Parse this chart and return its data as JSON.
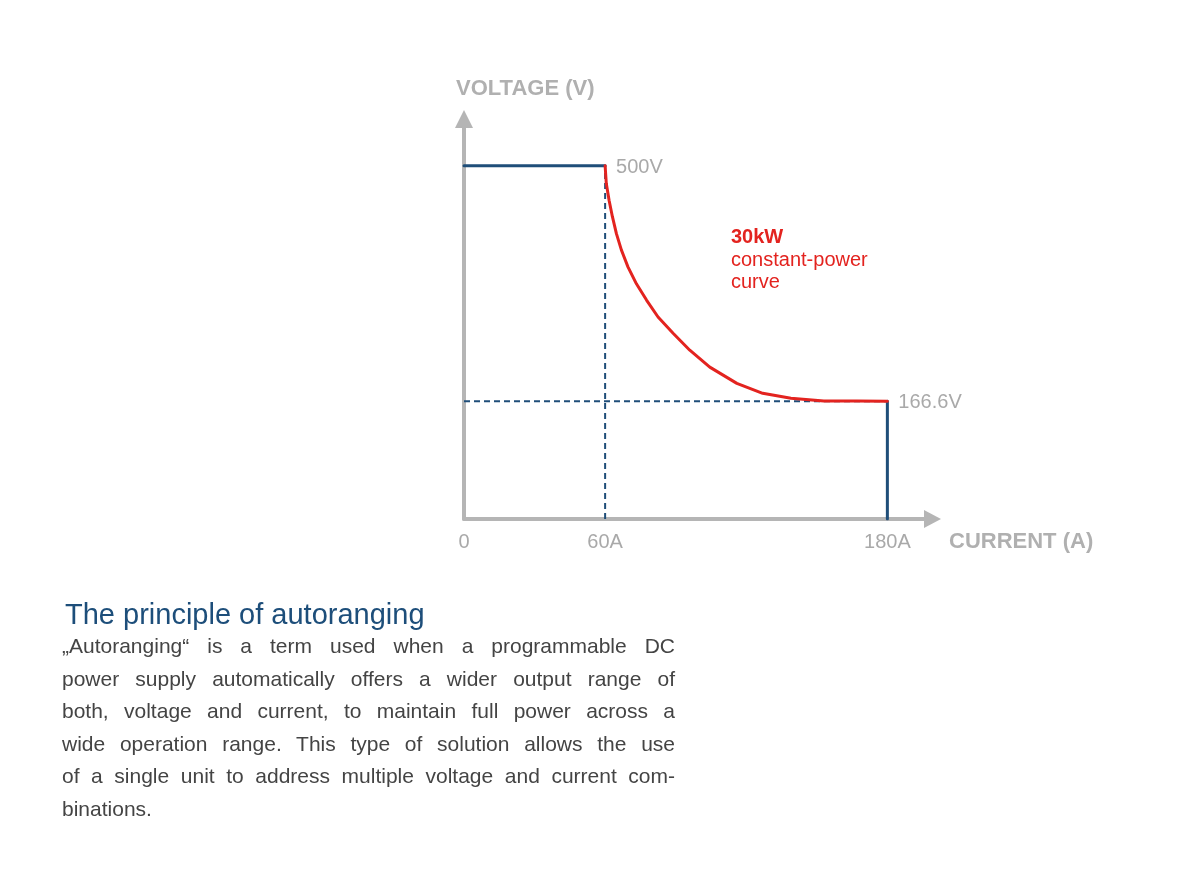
{
  "chart_data": {
    "type": "line",
    "title": "The principle of autoranging",
    "xlabel": "CURRENT (A)",
    "ylabel": "VOLTAGE (V)",
    "xlim": [
      0,
      196
    ],
    "xticks": [
      0,
      {
        "value": 60,
        "label": "60A"
      },
      {
        "value": 180,
        "label": "180A"
      }
    ],
    "ylim": [
      0,
      555
    ],
    "tick_labels": "x",
    "grid": false,
    "legend": false,
    "marker": "none",
    "line_style": "solid",
    "series": [
      {
        "color": "#1f4e79",
        "line_style": "dashed",
        "x": [
          60,
          60
        ],
        "values": [
          0,
          500
        ]
      },
      {
        "color": "#1f4e79",
        "line_style": "dashed",
        "x": [
          0,
          180
        ],
        "values": [
          166.6,
          166.6
        ]
      },
      {
        "color": "#1f4e79",
        "x": [
          0,
          60
        ],
        "values": [
          500,
          500
        ]
      },
      {
        "color": "#1f4e79",
        "x": [
          180,
          180
        ],
        "values": [
          166.6,
          0
        ]
      },
      {
        "name": "30kW constant-power curve",
        "color": "#e3231f",
        "x": [
          60,
          60.5,
          61.7,
          63.1,
          64.8,
          66.9,
          69.7,
          73.3,
          77.6,
          82.5,
          88.9,
          96,
          104.5,
          116,
          127,
          139,
          153,
          167,
          180
        ],
        "values": [
          500,
          475,
          451,
          428,
          404,
          381,
          357,
          333,
          310,
          286,
          263,
          239,
          215,
          192,
          178,
          171,
          167,
          167,
          166.6
        ],
        "value_labels": [
          "500V",
          null,
          null,
          null,
          null,
          null,
          null,
          null,
          null,
          null,
          null,
          null,
          null,
          null,
          null,
          null,
          null,
          null,
          "166.6V"
        ]
      }
    ],
    "annotations": [
      "„Autoranging“ is a term used when a programmable DC\npower supply automatically offers a wider output range of\nboth, voltage and current, to maintain full power across a\nwide operation range. This type of solution allows the use\nof a single unit to address multiple voltage and current com-\nbinations."
    ]
  }
}
